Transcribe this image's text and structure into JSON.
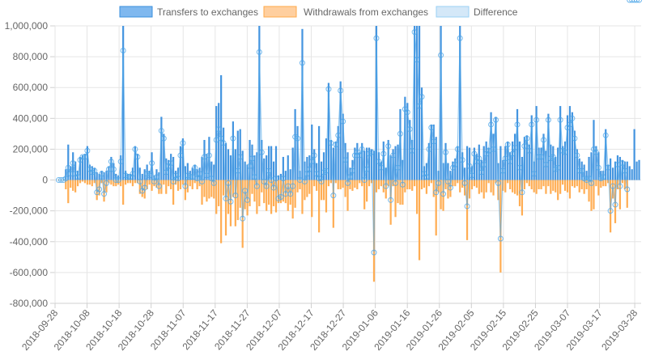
{
  "chart_data": {
    "type": "bar",
    "x_start": "2018-09-28",
    "x_end": "2019-03-30",
    "x_ticks": [
      "2018-09-28",
      "2018-10-08",
      "2018-10-18",
      "2018-10-28",
      "2018-11-07",
      "2018-11-17",
      "2018-11-27",
      "2018-12-07",
      "2018-12-17",
      "2018-12-27",
      "2019-01-06",
      "2019-01-16",
      "2019-01-26",
      "2019-02-05",
      "2019-02-15",
      "2019-02-25",
      "2019-03-07",
      "2019-03-17",
      "2019-03-28"
    ],
    "y_ticks": [
      "1,000,000",
      "800,000",
      "600,000",
      "400,000",
      "200,000",
      "0",
      "-200,000",
      "-400,000",
      "-600,000",
      "-800,000"
    ],
    "ylim": [
      -800000,
      1000000
    ],
    "grid": true,
    "legend_position": "top",
    "series": [
      {
        "name": "Transfers to exchanges",
        "color": "#3a8fde",
        "fill": "#7fb8ef",
        "values": [
          0,
          0,
          0,
          70000,
          230000,
          90000,
          180000,
          120000,
          60000,
          150000,
          160000,
          170000,
          220000,
          100000,
          90000,
          80000,
          50000,
          40000,
          60000,
          50000,
          60000,
          90000,
          150000,
          110000,
          40000,
          30000,
          160000,
          1000000,
          60000,
          40000,
          40000,
          80000,
          220000,
          170000,
          80000,
          40000,
          70000,
          100000,
          60000,
          180000,
          30000,
          70000,
          50000,
          410000,
          300000,
          140000,
          130000,
          170000,
          150000,
          60000,
          80000,
          220000,
          270000,
          90000,
          110000,
          60000,
          80000,
          100000,
          70000,
          80000,
          150000,
          260000,
          170000,
          280000,
          120000,
          100000,
          480000,
          500000,
          680000,
          340000,
          240000,
          200000,
          160000,
          380000,
          200000,
          320000,
          330000,
          190000,
          120000,
          100000,
          260000,
          230000,
          160000,
          180000,
          1000000,
          260000,
          140000,
          160000,
          220000,
          220000,
          120000,
          220000,
          30000,
          40000,
          150000,
          60000,
          160000,
          70000,
          210000,
          460000,
          350000,
          60000,
          980000,
          120000,
          150000,
          160000,
          360000,
          200000,
          110000,
          350000,
          120000,
          180000,
          270000,
          630000,
          260000,
          210000,
          250000,
          350000,
          640000,
          430000,
          240000,
          180000,
          80000,
          130000,
          210000,
          240000,
          180000,
          240000,
          190000,
          210000,
          210000,
          200000,
          190000,
          1000000,
          180000,
          120000,
          250000,
          80000,
          260000,
          160000,
          200000,
          220000,
          230000,
          460000,
          130000,
          540000,
          500000,
          390000,
          260000,
          1000000,
          1000000,
          1000000,
          600000,
          90000,
          110000,
          240000,
          360000,
          360000,
          280000,
          60000,
          1000000,
          110000,
          240000,
          110000,
          60000,
          120000,
          140000,
          220000,
          1000000,
          180000,
          80000,
          220000,
          210000,
          90000,
          210000,
          170000,
          230000,
          130000,
          220000,
          250000,
          210000,
          440000,
          300000,
          410000,
          110000,
          220000,
          130000,
          220000,
          250000,
          180000,
          250000,
          300000,
          460000,
          250000,
          150000,
          280000,
          290000,
          230000,
          420000,
          120000,
          480000,
          210000,
          210000,
          300000,
          190000,
          430000,
          230000,
          220000,
          150000,
          210000,
          480000,
          220000,
          250000,
          420000,
          480000,
          440000,
          320000,
          200000,
          140000,
          120000,
          100000,
          60000,
          150000,
          180000,
          390000,
          220000,
          180000,
          60000,
          60000,
          330000,
          100000,
          140000,
          80000,
          120000,
          160000,
          150000,
          130000,
          120000,
          120000,
          90000,
          70000,
          330000,
          120000,
          130000
        ]
      },
      {
        "name": "Withdrawals from exchanges",
        "color": "#ffa94a",
        "fill": "#ffcf9f",
        "values": [
          0,
          0,
          0,
          -60000,
          -150000,
          -50000,
          -70000,
          -80000,
          -40000,
          -20000,
          -10000,
          -20000,
          -30000,
          -30000,
          -40000,
          -20000,
          -130000,
          -100000,
          -20000,
          -140000,
          -80000,
          -20000,
          -30000,
          -40000,
          -40000,
          -30000,
          -40000,
          -160000,
          -30000,
          -20000,
          -20000,
          -40000,
          -20000,
          -20000,
          -90000,
          -110000,
          -120000,
          -60000,
          -30000,
          -70000,
          -40000,
          -50000,
          -90000,
          -90000,
          -30000,
          -90000,
          -40000,
          -60000,
          -160000,
          -30000,
          -70000,
          -60000,
          -30000,
          -130000,
          -80000,
          -40000,
          -60000,
          -20000,
          -60000,
          -40000,
          -160000,
          -110000,
          -140000,
          -120000,
          -110000,
          -120000,
          -220000,
          -170000,
          -410000,
          -100000,
          -360000,
          -220000,
          -300000,
          -110000,
          -300000,
          -260000,
          -180000,
          -440000,
          -190000,
          -230000,
          -170000,
          -90000,
          -140000,
          -220000,
          -170000,
          -80000,
          -150000,
          -200000,
          -160000,
          -220000,
          -170000,
          -210000,
          -150000,
          -150000,
          -140000,
          -150000,
          -200000,
          -160000,
          -250000,
          -180000,
          -80000,
          -60000,
          -220000,
          -130000,
          -110000,
          -90000,
          -240000,
          -40000,
          -70000,
          -340000,
          -130000,
          -130000,
          -210000,
          -40000,
          -20000,
          -310000,
          -20000,
          -60000,
          -60000,
          -50000,
          -110000,
          -200000,
          -60000,
          -70000,
          -50000,
          -60000,
          -20000,
          -40000,
          -190000,
          -140000,
          -40000,
          -20000,
          -660000,
          -80000,
          -60000,
          -40000,
          -80000,
          -120000,
          -40000,
          -290000,
          -40000,
          -240000,
          -150000,
          -160000,
          -160000,
          -80000,
          -60000,
          -60000,
          -70000,
          -40000,
          -220000,
          -520000,
          -60000,
          -50000,
          -90000,
          -40000,
          -20000,
          -110000,
          -360000,
          -80000,
          -190000,
          -200000,
          -60000,
          -120000,
          -110000,
          -40000,
          -40000,
          -20000,
          -80000,
          -50000,
          -100000,
          -390000,
          -120000,
          -60000,
          -40000,
          -50000,
          -90000,
          -80000,
          -120000,
          -80000,
          -20000,
          -80000,
          -100000,
          -20000,
          -130000,
          -600000,
          -70000,
          -80000,
          -20000,
          -60000,
          -80000,
          -90000,
          -100000,
          -170000,
          -230000,
          -60000,
          -20000,
          -40000,
          -60000,
          -80000,
          -90000,
          -60000,
          -60000,
          -40000,
          -90000,
          -40000,
          -90000,
          -70000,
          -80000,
          -130000,
          -90000,
          -30000,
          -70000,
          -80000,
          -120000,
          -40000,
          -50000,
          -40000,
          -80000,
          -60000,
          -90000,
          -60000,
          -140000,
          -200000,
          -190000,
          -40000,
          -100000,
          -50000,
          -40000,
          -40000,
          -20000,
          -340000,
          -120000,
          -280000,
          -60000,
          -190000,
          -20000,
          -60000,
          -180000
        ]
      }
    ],
    "difference": {
      "name": "Difference",
      "color": "#9ad0f5",
      "point_color": "#4ea6e8"
    }
  }
}
